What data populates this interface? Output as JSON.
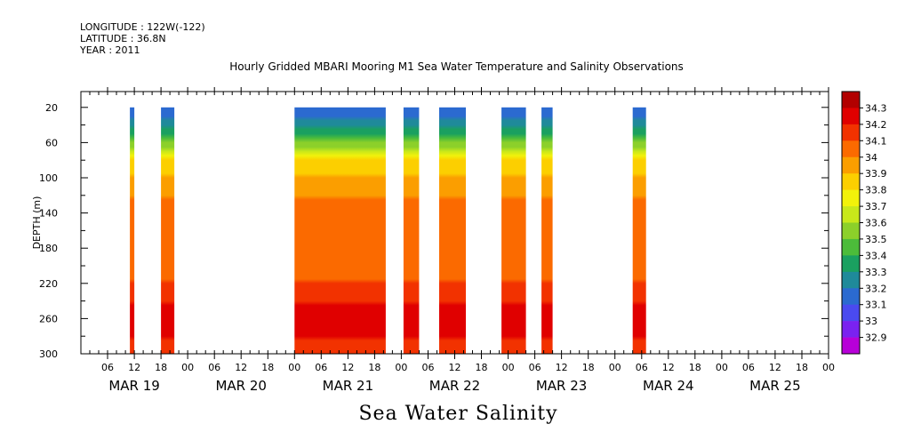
{
  "header": {
    "longitude": "LONGITUDE : 122W(-122)",
    "latitude": "LATITUDE : 36.8N",
    "year": "YEAR : 2011"
  },
  "chart_data": {
    "type": "heatmap",
    "title": "Hourly Gridded MBARI Mooring M1 Sea Water Temperature and Salinity Observations",
    "xlabel": "Sea Water Salinity",
    "ylabel": "DEPTH (m)",
    "x_range_hours": [
      0,
      168
    ],
    "x_hour_ticks": [
      "06",
      "12",
      "18",
      "00",
      "06",
      "12",
      "18",
      "00",
      "06",
      "12",
      "18",
      "00",
      "06",
      "12",
      "18",
      "00",
      "06",
      "12",
      "18",
      "00",
      "06",
      "12",
      "18",
      "00",
      "06",
      "12",
      "18",
      "00"
    ],
    "x_day_labels": [
      "MAR 19",
      "MAR 20",
      "MAR 21",
      "MAR 22",
      "MAR 23",
      "MAR 24",
      "MAR 25"
    ],
    "y_range": [
      300,
      2
    ],
    "y_ticks": [
      20,
      60,
      100,
      140,
      180,
      220,
      260,
      300
    ],
    "colorbar": {
      "levels": [
        32.9,
        33,
        33.1,
        33.2,
        33.3,
        33.4,
        33.5,
        33.6,
        33.7,
        33.8,
        33.9,
        34,
        34.1,
        34.2,
        34.3
      ],
      "labels": [
        "34.3",
        "34.2",
        "34.1",
        "34",
        "33.9",
        "33.8",
        "33.7",
        "33.6",
        "33.5",
        "33.4",
        "33.3",
        "33.2",
        "33.1",
        "33",
        "32.9"
      ],
      "colors": [
        "#b700d8",
        "#7a22f0",
        "#4a4af0",
        "#2b6ad0",
        "#1f8a9a",
        "#1aa060",
        "#4cbc3a",
        "#8cd02a",
        "#c8e81a",
        "#f2f20a",
        "#fccf00",
        "#fb9e00",
        "#fb6a00",
        "#f23200",
        "#e00000",
        "#b20000"
      ]
    },
    "observation_windows_hours": [
      [
        11.0,
        12.0
      ],
      [
        18.0,
        21.0
      ],
      [
        48.0,
        68.5
      ],
      [
        72.5,
        76.0
      ],
      [
        80.5,
        86.5
      ],
      [
        94.5,
        100.0
      ],
      [
        103.5,
        106.0
      ],
      [
        124.0,
        127.0
      ]
    ],
    "depth_structure": {
      "surface_salinity": 33.1,
      "halocline_depth_m": 60,
      "mid_salinity_140_200m": 34.05,
      "deep_salinity_260m": 34.25,
      "bottom_salinity_300m": 34.15
    }
  }
}
